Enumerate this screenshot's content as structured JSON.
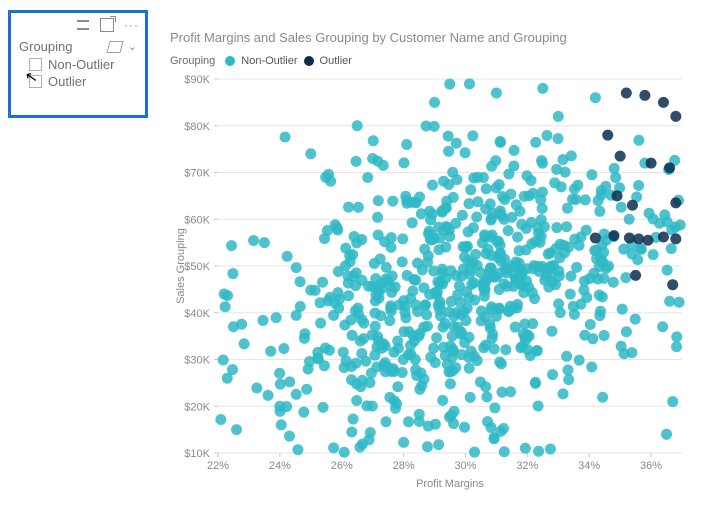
{
  "slicer": {
    "title": "Grouping",
    "items": [
      {
        "label": "Non-Outlier"
      },
      {
        "label": "Outlier"
      }
    ]
  },
  "chart": {
    "type": "scatter",
    "title": "Profit Margins and Sales Grouping by Customer Name and Grouping",
    "legend_label": "Grouping",
    "x_axis": {
      "title": "Profit Margins",
      "min": 22,
      "max": 37,
      "tick_step": 2,
      "tick_format": "percent"
    },
    "y_axis": {
      "title": "Sales Grouping",
      "min": 10000,
      "max": 90000,
      "tick_step": 10000,
      "tick_format": "$K"
    },
    "background_color": "#ffffff",
    "grid_color": "#e6e6e6",
    "marker_radius": 5.5,
    "marker_opacity": 0.85,
    "series": [
      {
        "name": "Non-Outlier",
        "color": "#2fb8c5",
        "cluster": {
          "count": 680,
          "x_mean": 30,
          "x_sd": 3.2,
          "y_mean": 45000,
          "y_sd": 15000,
          "x_min": 22,
          "x_max": 37,
          "y_min": 10000,
          "y_max": 90000
        },
        "explicit_points": [
          [
            22.3,
            26000
          ],
          [
            22.5,
            37000
          ],
          [
            22.6,
            15000
          ],
          [
            22.2,
            44000
          ],
          [
            26.5,
            80000
          ],
          [
            25.0,
            74000
          ],
          [
            27.0,
            73000
          ],
          [
            28.1,
            76000
          ],
          [
            24.0,
            20000
          ],
          [
            29.0,
            85000
          ],
          [
            32.5,
            88000
          ],
          [
            34.2,
            86000
          ],
          [
            36.5,
            14000
          ],
          [
            36.7,
            21000
          ],
          [
            23.5,
            55000
          ],
          [
            35.8,
            72000
          ],
          [
            31.0,
            87000
          ],
          [
            33.0,
            82000
          ]
        ]
      },
      {
        "name": "Outlier",
        "color": "#0b2e4f",
        "explicit_points": [
          [
            35.2,
            87000
          ],
          [
            35.8,
            86500
          ],
          [
            36.4,
            85000
          ],
          [
            36.8,
            82000
          ],
          [
            34.6,
            78000
          ],
          [
            35.0,
            73500
          ],
          [
            36.0,
            72000
          ],
          [
            36.6,
            71000
          ],
          [
            34.9,
            65000
          ],
          [
            35.4,
            63000
          ],
          [
            36.8,
            63500
          ],
          [
            34.2,
            56000
          ],
          [
            34.8,
            56500
          ],
          [
            35.3,
            56000
          ],
          [
            35.6,
            55800
          ],
          [
            35.9,
            55500
          ],
          [
            36.4,
            56200
          ],
          [
            36.8,
            55800
          ],
          [
            35.5,
            48000
          ],
          [
            36.7,
            46000
          ]
        ]
      }
    ]
  }
}
